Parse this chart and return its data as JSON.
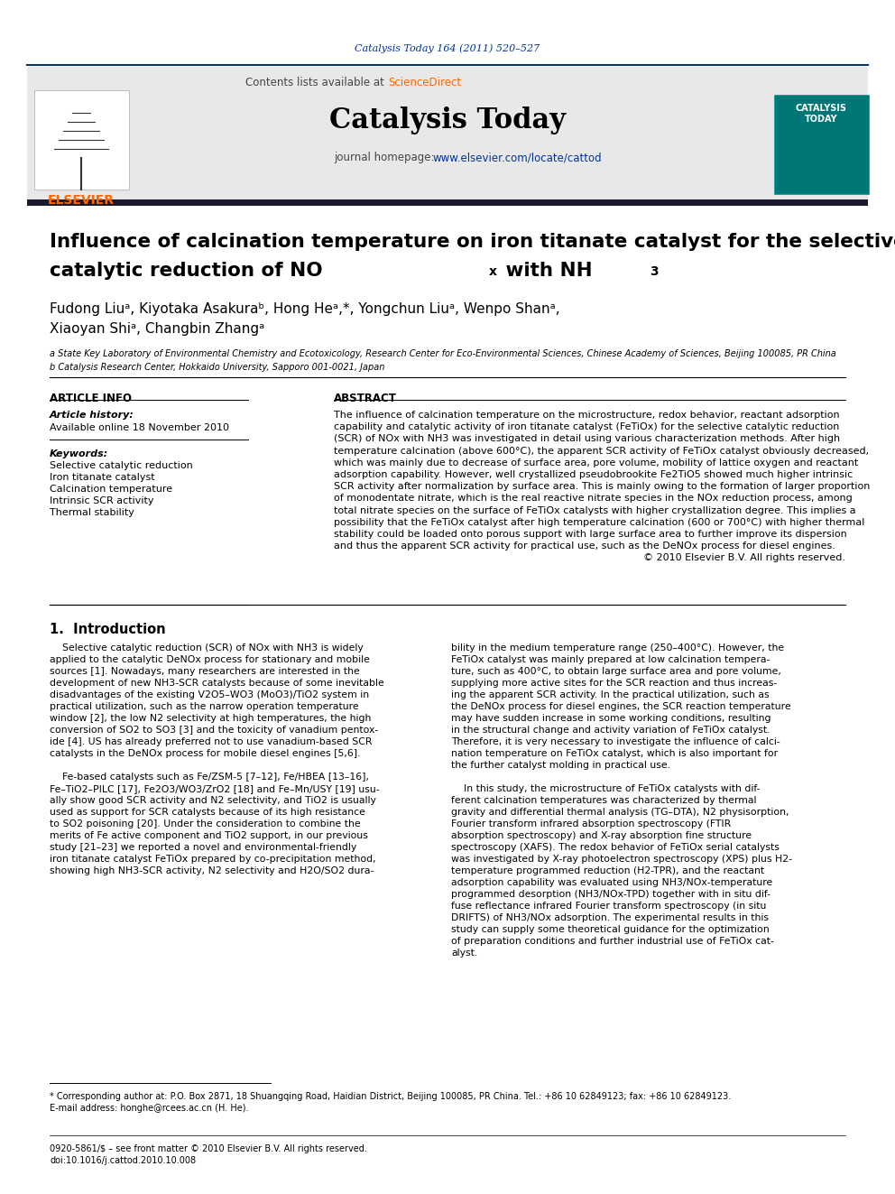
{
  "page_bg": "#ffffff",
  "header_journal_ref": "Catalysis Today 164 (2011) 520–527",
  "header_journal_ref_color": "#003399",
  "header_sciencedirect": "ScienceDirect",
  "header_sciencedirect_color": "#FF6600",
  "header_journal_name": "Catalysis Today",
  "header_url_color": "#003399",
  "header_bg": "#e8e8e8",
  "header_border_color": "#003366",
  "title_line1": "Influence of calcination temperature on iron titanate catalyst for the selective",
  "section_article_info": "ARTICLE INFO",
  "section_abstract": "ABSTRACT",
  "article_history_title": "Article history:",
  "article_history_content": "Available online 18 November 2010",
  "keywords_title": "Keywords:",
  "keywords": [
    "Selective catalytic reduction",
    "Iron titanate catalyst",
    "Calcination temperature",
    "Intrinsic SCR activity",
    "Thermal stability"
  ],
  "affil_a": "a State Key Laboratory of Environmental Chemistry and Ecotoxicology, Research Center for Eco-Environmental Sciences, Chinese Academy of Sciences, Beijing 100085, PR China",
  "affil_b": "b Catalysis Research Center, Hokkaido University, Sapporo 001-0021, Japan",
  "footnote_star": "* Corresponding author at: P.O. Box 2871, 18 Shuangqing Road, Haidian District, Beijing 100085, PR China. Tel.: +86 10 62849123; fax: +86 10 62849123.",
  "footnote_email": "E-mail address: honghe@rcees.ac.cn (H. He).",
  "bottom_line1": "0920-5861/$ – see front matter © 2010 Elsevier B.V. All rights reserved.",
  "bottom_line2": "doi:10.1016/j.cattod.2010.10.008"
}
